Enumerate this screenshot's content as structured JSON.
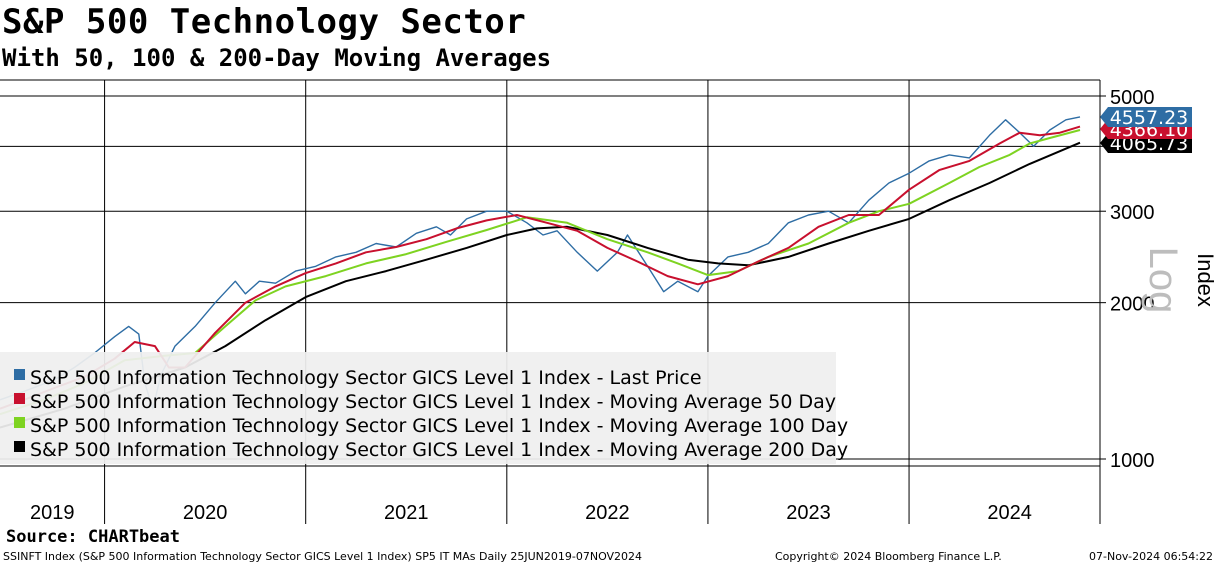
{
  "header": {
    "title": "S&P 500 Technology Sector",
    "subtitle": "With 50, 100 & 200-Day Moving Averages"
  },
  "chart_data": {
    "type": "line",
    "title": "S&P 500 Technology Sector",
    "subtitle": "With 50, 100 & 200-Day Moving Averages",
    "y_scale": "log",
    "ylim": [
      1000,
      5000
    ],
    "yticks": [
      1000,
      2000,
      3000,
      4000,
      5000
    ],
    "ytick_labels": [
      "1000",
      "2000",
      "3000",
      "",
      "5000"
    ],
    "ylabel": "Index",
    "scale_label": "Log",
    "xlim": [
      2019.48,
      2024.85
    ],
    "x_year_labels": [
      "2019",
      "2020",
      "2021",
      "2022",
      "2023",
      "2024"
    ],
    "x_year_label_pos": [
      2019.74,
      2020.5,
      2021.5,
      2022.5,
      2023.5,
      2024.5
    ],
    "x_gridlines": [
      2020,
      2021,
      2022,
      2023,
      2024
    ],
    "legend_position": "bottom-left",
    "series": [
      {
        "name": "S&P 500 Information Technology Sector GICS Level 1 Index - Last Price",
        "color": "#2e6da4",
        "x": [
          2019.48,
          2019.6,
          2019.75,
          2019.85,
          2019.95,
          2020.05,
          2020.12,
          2020.17,
          2020.2,
          2020.24,
          2020.28,
          2020.35,
          2020.45,
          2020.55,
          2020.65,
          2020.7,
          2020.77,
          2020.85,
          2020.95,
          2021.05,
          2021.15,
          2021.25,
          2021.35,
          2021.45,
          2021.55,
          2021.65,
          2021.72,
          2021.8,
          2021.9,
          2022.0,
          2022.1,
          2022.18,
          2022.25,
          2022.35,
          2022.45,
          2022.55,
          2022.6,
          2022.7,
          2022.78,
          2022.85,
          2022.95,
          2023.0,
          2023.1,
          2023.2,
          2023.3,
          2023.4,
          2023.5,
          2023.6,
          2023.7,
          2023.8,
          2023.9,
          2024.0,
          2024.1,
          2024.2,
          2024.3,
          2024.4,
          2024.48,
          2024.55,
          2024.62,
          2024.7,
          2024.78,
          2024.85
        ],
        "values": [
          1300,
          1350,
          1420,
          1500,
          1600,
          1720,
          1800,
          1740,
          1400,
          1250,
          1450,
          1650,
          1800,
          2000,
          2200,
          2080,
          2200,
          2180,
          2300,
          2350,
          2450,
          2500,
          2600,
          2560,
          2720,
          2800,
          2700,
          2900,
          3000,
          3000,
          2850,
          2700,
          2750,
          2500,
          2300,
          2500,
          2700,
          2350,
          2100,
          2200,
          2100,
          2250,
          2450,
          2500,
          2600,
          2850,
          2950,
          3000,
          2850,
          3150,
          3400,
          3550,
          3750,
          3850,
          3800,
          4200,
          4500,
          4250,
          4000,
          4300,
          4500,
          4557.23
        ]
      },
      {
        "name": "S&P 500 Information Technology Sector GICS Level 1 Index - Moving Average 50 Day",
        "color": "#c8102e",
        "x": [
          2019.48,
          2019.6,
          2019.75,
          2019.9,
          2020.05,
          2020.15,
          2020.25,
          2020.32,
          2020.4,
          2020.55,
          2020.7,
          2020.85,
          2021.0,
          2021.15,
          2021.3,
          2021.45,
          2021.6,
          2021.75,
          2021.9,
          2022.05,
          2022.2,
          2022.35,
          2022.5,
          2022.65,
          2022.8,
          2022.95,
          2023.1,
          2023.25,
          2023.4,
          2023.55,
          2023.7,
          2023.85,
          2024.0,
          2024.15,
          2024.3,
          2024.45,
          2024.55,
          2024.65,
          2024.75,
          2024.85
        ],
        "values": [
          1250,
          1300,
          1370,
          1440,
          1560,
          1680,
          1650,
          1500,
          1500,
          1750,
          2000,
          2150,
          2280,
          2380,
          2500,
          2560,
          2650,
          2780,
          2880,
          2950,
          2850,
          2750,
          2550,
          2400,
          2250,
          2170,
          2250,
          2400,
          2550,
          2800,
          2950,
          2950,
          3300,
          3600,
          3750,
          4050,
          4250,
          4200,
          4250,
          4366.1
        ]
      },
      {
        "name": "S&P 500 Information Technology Sector GICS Level 1 Index - Moving Average 100 Day",
        "color": "#7ed321",
        "x": [
          2019.48,
          2019.7,
          2019.9,
          2020.1,
          2020.3,
          2020.45,
          2020.6,
          2020.75,
          2020.9,
          2021.1,
          2021.3,
          2021.5,
          2021.7,
          2021.9,
          2022.1,
          2022.3,
          2022.5,
          2022.7,
          2022.85,
          2023.0,
          2023.15,
          2023.3,
          2023.5,
          2023.7,
          2023.85,
          2024.0,
          2024.2,
          2024.35,
          2024.5,
          2024.6,
          2024.7,
          2024.85
        ],
        "values": [
          1220,
          1300,
          1400,
          1550,
          1580,
          1600,
          1800,
          2020,
          2150,
          2250,
          2380,
          2480,
          2620,
          2760,
          2920,
          2850,
          2650,
          2500,
          2380,
          2260,
          2300,
          2450,
          2600,
          2850,
          3000,
          3100,
          3400,
          3650,
          3850,
          4050,
          4150,
          4300
        ]
      },
      {
        "name": "S&P 500 Information Technology Sector GICS Level 1 Index - Moving Average 200 Day",
        "color": "#000000",
        "x": [
          2019.48,
          2019.8,
          2020.1,
          2020.4,
          2020.6,
          2020.8,
          2021.0,
          2021.2,
          2021.4,
          2021.6,
          2021.8,
          2022.0,
          2022.15,
          2022.3,
          2022.5,
          2022.7,
          2022.9,
          2023.05,
          2023.2,
          2023.4,
          2023.6,
          2023.8,
          2024.0,
          2024.2,
          2024.4,
          2024.6,
          2024.85
        ],
        "values": [
          1150,
          1250,
          1380,
          1500,
          1650,
          1850,
          2050,
          2200,
          2300,
          2420,
          2550,
          2700,
          2780,
          2800,
          2700,
          2550,
          2420,
          2380,
          2360,
          2450,
          2600,
          2750,
          2900,
          3150,
          3400,
          3700,
          4065.73
        ]
      }
    ],
    "last_value_labels": [
      {
        "value": "4557.23",
        "color": "#2e6da4"
      },
      {
        "value": "4366.10",
        "color": "#c8102e"
      },
      {
        "value": "4065.73",
        "color": "#000000"
      }
    ]
  },
  "footer": {
    "source": "Source: CHARTbeat",
    "ticker": "SSINFT Index (S&P 500 Information Technology Sector GICS Level 1 Index) SP5 IT MAs  Daily 25JUN2019-07NOV2024",
    "copyright": "Copyright© 2024 Bloomberg Finance L.P.",
    "timestamp": "07-Nov-2024 06:54:22"
  }
}
